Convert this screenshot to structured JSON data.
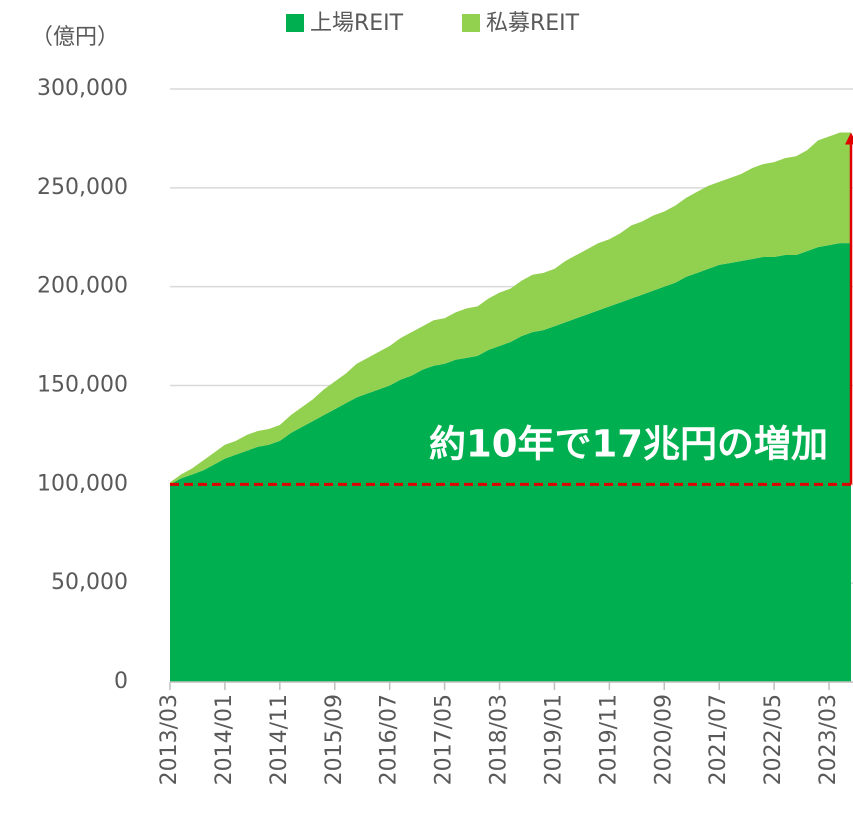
{
  "chart_data": {
    "type": "stacked_area",
    "unit_label": "（億円）",
    "annotation": "約10年で17兆円の増加",
    "reference_line": 100000,
    "categories": [
      "2013/03",
      null,
      null,
      null,
      null,
      "2014/01",
      null,
      null,
      null,
      null,
      "2014/11",
      null,
      null,
      null,
      null,
      "2015/09",
      null,
      null,
      null,
      null,
      "2016/07",
      null,
      null,
      null,
      null,
      "2017/05",
      null,
      null,
      null,
      null,
      "2018/03",
      null,
      null,
      null,
      null,
      "2019/01",
      null,
      null,
      null,
      null,
      "2019/11",
      null,
      null,
      null,
      null,
      "2020/09",
      null,
      null,
      null,
      null,
      "2021/07",
      null,
      null,
      null,
      null,
      "2022/05",
      null,
      null,
      null,
      null,
      "2023/03",
      null,
      null
    ],
    "series": [
      {
        "name": "上場REIT",
        "color": "#00b050",
        "values": [
          100000,
          103000,
          105000,
          107000,
          110000,
          113000,
          115000,
          117000,
          119000,
          120000,
          122000,
          126000,
          129000,
          132000,
          135000,
          138000,
          141000,
          144000,
          146000,
          148000,
          150000,
          153000,
          155000,
          158000,
          160000,
          161000,
          163000,
          164000,
          165000,
          168000,
          170000,
          172000,
          175000,
          177000,
          178000,
          180000,
          182000,
          184000,
          186000,
          188000,
          190000,
          192000,
          194000,
          196000,
          198000,
          200000,
          202000,
          205000,
          207000,
          209000,
          211000,
          212000,
          213000,
          214000,
          215000,
          215000,
          216000,
          216000,
          218000,
          220000,
          221000,
          222000,
          222000
        ]
      },
      {
        "name": "私募REIT",
        "color": "#92d050",
        "values": [
          1000,
          2000,
          3000,
          5000,
          6000,
          7000,
          7000,
          8000,
          8000,
          8000,
          8000,
          9000,
          10000,
          11000,
          13000,
          14000,
          15000,
          17000,
          18000,
          19000,
          20000,
          21000,
          22000,
          22000,
          23000,
          23000,
          24000,
          25000,
          25000,
          26000,
          27000,
          27000,
          28000,
          29000,
          29000,
          29000,
          31000,
          32000,
          33000,
          34000,
          34000,
          35000,
          37000,
          37000,
          38000,
          38000,
          39000,
          40000,
          41000,
          42000,
          42000,
          43000,
          44000,
          46000,
          47000,
          48000,
          49000,
          50000,
          51000,
          54000,
          55000,
          56000,
          56000
        ]
      }
    ],
    "ylim": [
      0,
      300000
    ],
    "yticks": [
      0,
      {
        "value": 50000,
        "label": "50,000"
      },
      {
        "value": 100000,
        "label": "100,000"
      },
      {
        "value": 150000,
        "label": "150,000"
      },
      {
        "value": 200000,
        "label": "200,000"
      },
      {
        "value": 250000,
        "label": "250,000"
      },
      {
        "value": 300000,
        "label": "300,000"
      }
    ],
    "grid": true
  }
}
